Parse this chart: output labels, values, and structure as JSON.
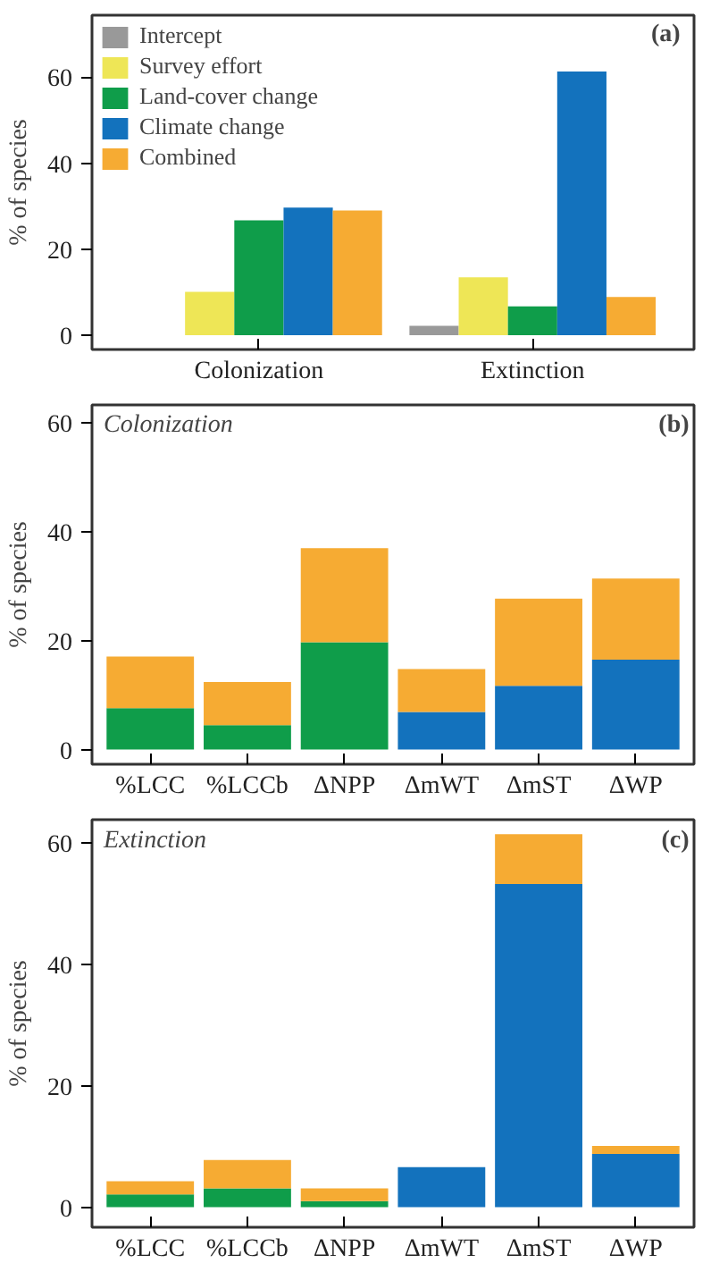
{
  "chart_data": [
    {
      "type": "bar",
      "categories": [
        "Colonization",
        "Extinction"
      ],
      "ylabel": "% of species",
      "ylim": [
        -3.3,
        74.4
      ],
      "yticks": [
        0,
        20,
        40,
        60
      ],
      "legend": "top left",
      "grid": false,
      "annotations": [
        "(a)"
      ],
      "series": [
        {
          "name": "Intercept",
          "color": "#999999",
          "values": [
            0,
            2.2
          ]
        },
        {
          "name": "Survey effort",
          "color": "#eee656",
          "values": [
            10.1,
            13.5
          ]
        },
        {
          "name": "Land-cover change",
          "color": "#0f9d4a",
          "values": [
            26.7,
            6.7
          ]
        },
        {
          "name": "Climate change",
          "color": "#1372bd",
          "values": [
            29.7,
            61.3
          ]
        },
        {
          "name": "Combined",
          "color": "#f6ab33",
          "values": [
            29.0,
            8.9
          ]
        }
      ]
    },
    {
      "type": "bar",
      "stacked": true,
      "categories": [
        "%LCC",
        "%LCCb",
        "ΔNPP",
        "ΔmWT",
        "ΔmST",
        "ΔWP"
      ],
      "ylabel": "% of species",
      "ylim": [
        -2.7,
        63.3
      ],
      "yticks": [
        0,
        20,
        40,
        60
      ],
      "grid": false,
      "annotations": [
        "Colonization",
        "(b)"
      ],
      "series": [
        {
          "color": "#0f9d4a",
          "values": [
            7.6,
            4.5,
            19.7,
            null,
            null,
            null
          ]
        },
        {
          "color": "#1372bd",
          "values": [
            null,
            null,
            null,
            6.9,
            11.7,
            16.5
          ]
        },
        {
          "color": "#f6ab33",
          "values": [
            9.5,
            7.9,
            17.3,
            7.9,
            16.0,
            14.9
          ]
        }
      ]
    },
    {
      "type": "bar",
      "stacked": true,
      "categories": [
        "%LCC",
        "%LCCb",
        "ΔNPP",
        "ΔmWT",
        "ΔmST",
        "ΔWP"
      ],
      "ylabel": "% of species",
      "ylim": [
        -3.3,
        63.9
      ],
      "yticks": [
        0,
        20,
        40,
        60
      ],
      "grid": false,
      "annotations": [
        "Extinction",
        "(c)"
      ],
      "series": [
        {
          "color": "#0f9d4a",
          "values": [
            2.1,
            3.1,
            1.0,
            null,
            null,
            null
          ]
        },
        {
          "color": "#1372bd",
          "values": [
            null,
            null,
            null,
            6.6,
            53.3,
            8.8
          ]
        },
        {
          "color": "#f6ab33",
          "values": [
            2.2,
            4.7,
            2.1,
            null,
            8.2,
            1.3
          ]
        }
      ]
    }
  ]
}
